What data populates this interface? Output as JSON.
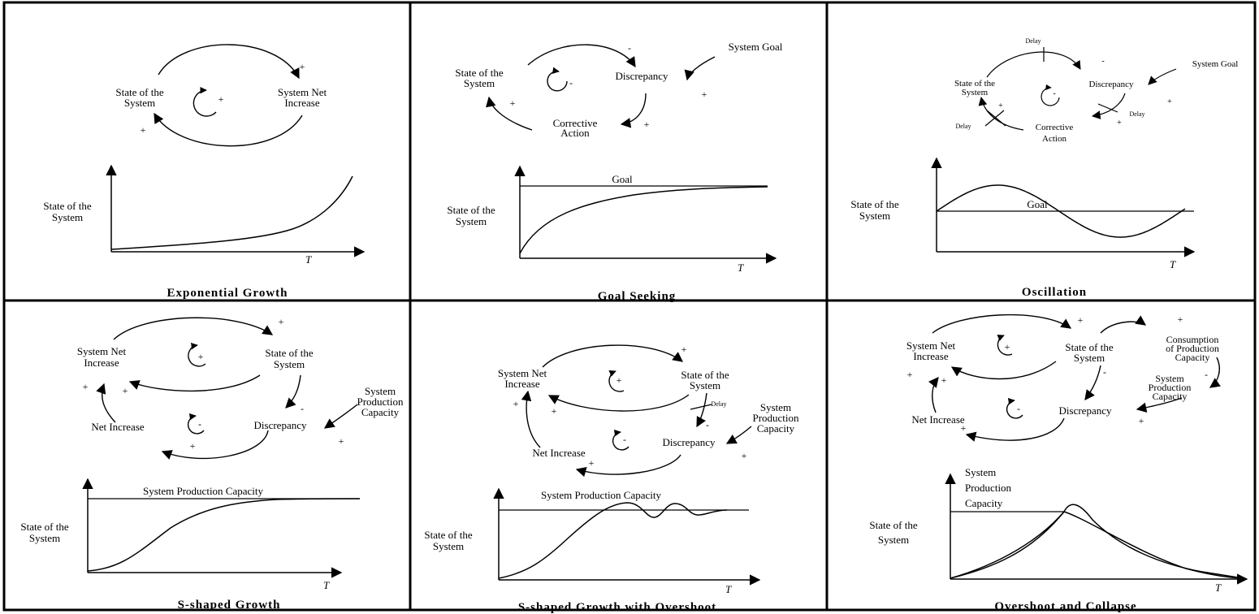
{
  "panels": {
    "exponential": {
      "title": "Exponential Growth",
      "loop": {
        "state_l1": "State of the",
        "state_l2": "System",
        "inc_l1": "System Net",
        "inc_l2": "Increase",
        "loop_sign": "+",
        "arc_sign_top": "+",
        "arc_sign_bottom": "+"
      },
      "chart": {
        "ylabel_l1": "State of the",
        "ylabel_l2": "System",
        "xlabel": "T"
      }
    },
    "goal_seeking": {
      "title": "Goal Seeking",
      "loop": {
        "state_l1": "State of the",
        "state_l2": "System",
        "disc": "Discrepancy",
        "goal": "System Goal",
        "ca_l1": "Corrective",
        "ca_l2": "Action",
        "loop_sign": "-",
        "s1": "-",
        "s2": "+",
        "s3": "+",
        "s4": "+"
      },
      "chart": {
        "ylabel_l1": "State of the",
        "ylabel_l2": "System",
        "xlabel": "T",
        "goal_label": "Goal"
      }
    },
    "oscillation": {
      "title": "Oscillation",
      "loop": {
        "state_l1": "State of the",
        "state_l2": "System",
        "disc": "Discrepancy",
        "goal": "System Goal",
        "ca_l1": "Corrective",
        "ca_l2": "Action",
        "delay1": "Delay",
        "delay2": "Delay",
        "delay3": "Delay",
        "loop_sign": "-",
        "s1": "-",
        "s2": "+",
        "s3": "+",
        "s4": "+"
      },
      "chart": {
        "ylabel_l1": "State of the",
        "ylabel_l2": "System",
        "xlabel": "T",
        "goal_label": "Goal"
      }
    },
    "s_shaped": {
      "title": "S-shaped Growth",
      "loop": {
        "inc_l1": "System Net",
        "inc_l2": "Increase",
        "state_l1": "State of the",
        "state_l2": "System",
        "cap_l1": "System",
        "cap_l2": "Production",
        "cap_l3": "Capacity",
        "net_inc": "Net Increase",
        "disc": "Discrepancy",
        "loop1_sign": "+",
        "loop2_sign": "-",
        "s1": "+",
        "s2": "+",
        "s3": "+",
        "s4": "-",
        "s5": "+",
        "s6": "+"
      },
      "chart": {
        "ylabel_l1": "State of the",
        "ylabel_l2": "System",
        "xlabel": "T",
        "cap_label": "System Production  Capacity"
      }
    },
    "s_overshoot": {
      "title": "S-shaped Growth with Overshoot",
      "loop": {
        "inc_l1": "System Net",
        "inc_l2": "Increase",
        "state_l1": "State of the",
        "state_l2": "System",
        "cap_l1": "System",
        "cap_l2": "Production",
        "cap_l3": "Capacity",
        "net_inc": "Net Increase",
        "disc": "Discrepancy",
        "delay": "Delay",
        "loop1_sign": "+",
        "loop2_sign": "-",
        "s1": "+",
        "s2": "+",
        "s3": "+",
        "s4": "-",
        "s5": "+",
        "s6": "+"
      },
      "chart": {
        "ylabel_l1": "State of the",
        "ylabel_l2": "System",
        "xlabel": "T",
        "cap_label": "System Production  Capacity"
      }
    },
    "overshoot_collapse": {
      "title": "Overshoot and Collapse",
      "loop": {
        "inc_l1": "System Net",
        "inc_l2": "Increase",
        "state_l1": "State of the",
        "state_l2": "System",
        "cons_l1": "Consumption",
        "cons_l2": "of Production",
        "cons_l3": "Capacity",
        "cap_l1": "System",
        "cap_l2": "Production",
        "cap_l3": "Capacity",
        "net_inc": "Net Increase",
        "disc": "Discrepancy",
        "loop1_sign": "+",
        "loop2_sign": "-",
        "s1": "+",
        "s2": "+",
        "s3": "+",
        "s4": "-",
        "s5": "+",
        "s6": "-",
        "s7": "+",
        "s8": "+"
      },
      "chart": {
        "ylabel_l1": "State of the",
        "ylabel_l2": "System",
        "xlabel": "T",
        "cap_l1": "System",
        "cap_l2": "Production",
        "cap_l3": "Capacity"
      }
    }
  }
}
